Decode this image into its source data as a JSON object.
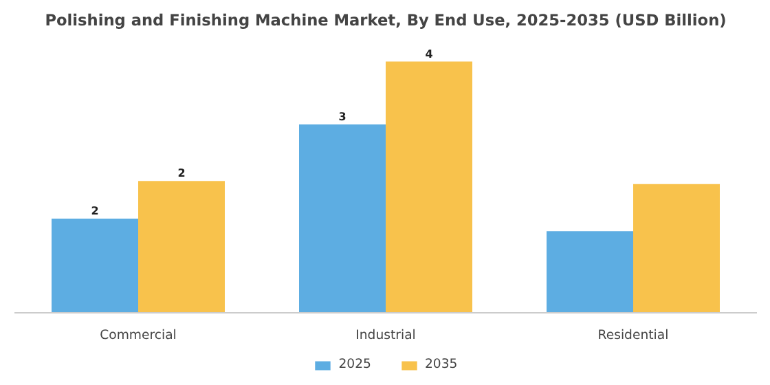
{
  "chart_data": {
    "type": "bar",
    "title": "Polishing and Finishing Machine Market, By End Use, 2025-2035 (USD Billion)",
    "categories": [
      "Commercial",
      "Industrial",
      "Residential"
    ],
    "series": [
      {
        "name": "2025",
        "color": "#5dade2",
        "values": [
          1.5,
          3.0,
          1.3
        ],
        "value_labels": [
          "2",
          "3",
          null
        ]
      },
      {
        "name": "2035",
        "color": "#f8c24c",
        "values": [
          2.1,
          4.0,
          2.05
        ],
        "value_labels": [
          "2",
          "4",
          null
        ]
      }
    ],
    "tick_labels": "x",
    "legend": "bottom"
  }
}
